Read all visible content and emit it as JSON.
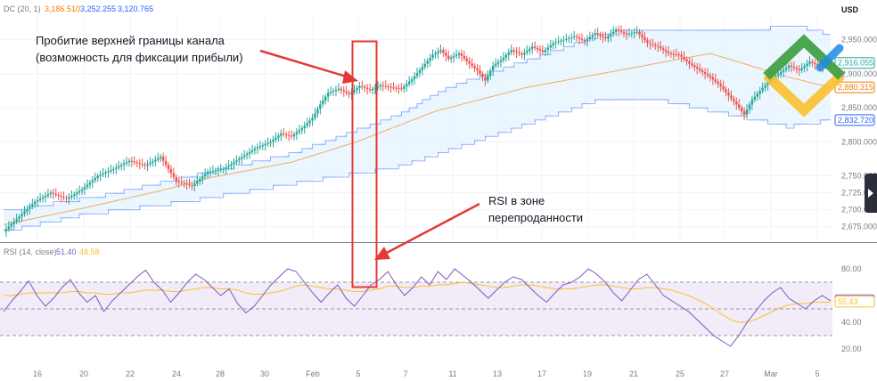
{
  "chart_data": [
    {
      "type": "candlestick",
      "indicator_label": "DC (20, 1)",
      "indicator_values": [
        "3,186.510",
        "3,252.255",
        "3,120.765"
      ],
      "currency": "USD",
      "ylim": [
        2655,
        2985
      ],
      "y_ticks": [
        "2,950.000",
        "2,900.000",
        "2,850.000",
        "2,800.000",
        "2,750.000",
        "2,725.000",
        "2,700.000",
        "2,675.000"
      ],
      "y_tick_values": [
        2950,
        2900,
        2850,
        2800,
        2750,
        2725,
        2700,
        2675
      ],
      "price_badges": [
        {
          "label": "2,916.055",
          "value": 2916,
          "color": "#26a69a"
        },
        {
          "label": "2,880.315",
          "value": 2880,
          "color": "#f57c00"
        },
        {
          "label": "2,832.720",
          "value": 2832,
          "color": "#2962ff"
        }
      ],
      "x_ticks": [
        "16",
        "20",
        "22",
        "24",
        "28",
        "30",
        "Feb",
        "5",
        "7",
        "11",
        "13",
        "17",
        "19",
        "21",
        "25",
        "27",
        "Mar",
        "5"
      ],
      "x_tick_positions": [
        42,
        94,
        146,
        198,
        247,
        297,
        351,
        402,
        455,
        508,
        558,
        608,
        659,
        711,
        763,
        813,
        865,
        917
      ],
      "candle_x_range": [
        4,
        932
      ],
      "close_path": [
        [
          0,
          2668
        ],
        [
          6,
          2690
        ],
        [
          12,
          2712
        ],
        [
          18,
          2725
        ],
        [
          24,
          2716
        ],
        [
          30,
          2730
        ],
        [
          36,
          2750
        ],
        [
          42,
          2760
        ],
        [
          48,
          2772
        ],
        [
          54,
          2765
        ],
        [
          60,
          2778
        ],
        [
          66,
          2742
        ],
        [
          72,
          2735
        ],
        [
          78,
          2756
        ],
        [
          84,
          2760
        ],
        [
          90,
          2775
        ],
        [
          96,
          2790
        ],
        [
          102,
          2800
        ],
        [
          106,
          2812
        ],
        [
          110,
          2808
        ],
        [
          114,
          2820
        ],
        [
          118,
          2835
        ],
        [
          121,
          2855
        ],
        [
          124,
          2872
        ],
        [
          128,
          2878
        ],
        [
          132,
          2870
        ],
        [
          136,
          2882
        ],
        [
          140,
          2876
        ],
        [
          144,
          2883
        ],
        [
          148,
          2880
        ],
        [
          152,
          2878
        ],
        [
          156,
          2892
        ],
        [
          160,
          2910
        ],
        [
          164,
          2928
        ],
        [
          167,
          2935
        ],
        [
          170,
          2922
        ],
        [
          174,
          2930
        ],
        [
          178,
          2915
        ],
        [
          181,
          2905
        ],
        [
          184,
          2890
        ],
        [
          187,
          2912
        ],
        [
          190,
          2920
        ],
        [
          194,
          2935
        ],
        [
          198,
          2928
        ],
        [
          202,
          2940
        ],
        [
          206,
          2932
        ],
        [
          210,
          2945
        ],
        [
          214,
          2950
        ],
        [
          218,
          2955
        ],
        [
          222,
          2948
        ],
        [
          226,
          2960
        ],
        [
          230,
          2952
        ],
        [
          234,
          2965
        ],
        [
          238,
          2958
        ],
        [
          242,
          2962
        ],
        [
          246,
          2945
        ],
        [
          250,
          2940
        ],
        [
          254,
          2930
        ],
        [
          258,
          2928
        ],
        [
          262,
          2915
        ],
        [
          266,
          2905
        ],
        [
          270,
          2895
        ],
        [
          274,
          2882
        ],
        [
          277,
          2868
        ],
        [
          280,
          2855
        ],
        [
          283,
          2840
        ],
        [
          286,
          2862
        ],
        [
          289,
          2875
        ],
        [
          292,
          2888
        ],
        [
          296,
          2900
        ],
        [
          300,
          2912
        ],
        [
          304,
          2905
        ],
        [
          308,
          2918
        ],
        [
          312,
          2910
        ],
        [
          316,
          2916
        ]
      ],
      "donchian": {
        "upper": [
          [
            0,
            2698
          ],
          [
            40,
            2722
          ],
          [
            110,
            2782
          ],
          [
            150,
            2838
          ],
          [
            170,
            2880
          ],
          [
            232,
            2962
          ],
          [
            305,
            2968
          ],
          [
            316,
            2958
          ]
        ],
        "lower": [
          [
            0,
            2668
          ],
          [
            30,
            2692
          ],
          [
            70,
            2712
          ],
          [
            110,
            2738
          ],
          [
            150,
            2762
          ],
          [
            184,
            2805
          ],
          [
            226,
            2860
          ],
          [
            250,
            2862
          ],
          [
            300,
            2822
          ],
          [
            316,
            2832
          ]
        ],
        "basis": [
          [
            0,
            2678
          ],
          [
            30,
            2702
          ],
          [
            60,
            2728
          ],
          [
            80,
            2748
          ],
          [
            110,
            2770
          ],
          [
            135,
            2800
          ],
          [
            165,
            2845
          ],
          [
            200,
            2880
          ],
          [
            235,
            2905
          ],
          [
            270,
            2930
          ],
          [
            300,
            2895
          ],
          [
            316,
            2880
          ]
        ]
      },
      "annotations": [
        "Пробитие верхней границы канала",
        "(возможность для фиксации прибыли)"
      ]
    },
    {
      "type": "line",
      "indicator_label": "RSI (14, close)",
      "indicator_values": [
        "51.40",
        "48.58"
      ],
      "ylim": [
        12,
        92
      ],
      "y_ticks": [
        "80.00",
        "40.00",
        "20.00"
      ],
      "y_tick_values": [
        80,
        40,
        20
      ],
      "bands": [
        70,
        50,
        30
      ],
      "price_badges": [
        {
          "label": "56.43",
          "value": 56.43,
          "color": "#7e57c2"
        },
        {
          "label": "55.43",
          "value": 55.43,
          "color": "#fbc02d"
        }
      ],
      "series": [
        {
          "values": [
            48,
            56,
            63,
            71,
            60,
            52,
            58,
            66,
            72,
            62,
            55,
            60,
            48,
            56,
            62,
            68,
            74,
            79,
            70,
            64,
            55,
            62,
            70,
            76,
            72,
            66,
            60,
            65,
            54,
            47,
            52,
            60,
            68,
            74,
            80,
            78,
            70,
            62,
            55,
            62,
            68,
            58,
            52,
            60,
            68,
            72,
            78,
            68,
            60,
            66,
            74,
            68,
            78,
            72,
            80,
            75,
            70,
            64,
            58,
            64,
            70,
            74,
            72,
            66,
            60,
            55,
            62,
            68,
            70,
            74,
            80,
            76,
            70,
            62,
            56,
            64,
            72,
            76,
            68,
            60,
            56,
            52,
            48,
            42,
            36,
            30,
            26,
            22,
            30,
            40,
            48,
            56,
            62,
            66,
            58,
            54,
            50,
            56,
            60,
            56
          ]
        },
        {
          "values": [
            60,
            60,
            61,
            62,
            62,
            62,
            62,
            62,
            63,
            63,
            62,
            62,
            61,
            61,
            62,
            62,
            63,
            64,
            64,
            64,
            63,
            63,
            64,
            65,
            66,
            66,
            65,
            65,
            64,
            62,
            61,
            61,
            62,
            63,
            65,
            67,
            68,
            67,
            66,
            65,
            65,
            64,
            63,
            63,
            64,
            65,
            67,
            67,
            66,
            66,
            67,
            67,
            68,
            68,
            69,
            70,
            69,
            68,
            67,
            66,
            66,
            67,
            68,
            68,
            67,
            66,
            65,
            65,
            65,
            66,
            67,
            68,
            68,
            67,
            66,
            65,
            65,
            66,
            66,
            65,
            64,
            62,
            60,
            57,
            54,
            50,
            46,
            42,
            40,
            40,
            42,
            45,
            48,
            51,
            53,
            54,
            54,
            55,
            55,
            55
          ]
        }
      ],
      "annotations": [
        "RSI в зоне",
        "перепроданности"
      ]
    }
  ],
  "colors": {
    "up": "#26a69a",
    "down": "#ef5350",
    "upper_band": "#2962ff",
    "lower_band": "#2962ff",
    "basis": "#f57c00",
    "channel_fill": "#e3f2fd",
    "rsi_line": "#7e57c2",
    "rsi_ma": "#fbc02d",
    "rsi_fill": "#ede7f6",
    "arrow": "#e53935",
    "logo_green": "#43a047",
    "logo_yellow": "#fbc02d",
    "logo_blue": "#1e88e5"
  }
}
